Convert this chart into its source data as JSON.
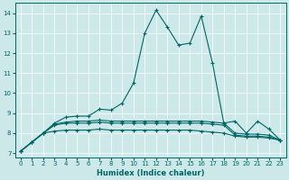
{
  "xlabel": "Humidex (Indice chaleur)",
  "xlim": [
    -0.5,
    23.5
  ],
  "ylim": [
    6.8,
    14.5
  ],
  "xticks": [
    0,
    1,
    2,
    3,
    4,
    5,
    6,
    7,
    8,
    9,
    10,
    11,
    12,
    13,
    14,
    15,
    16,
    17,
    18,
    19,
    20,
    21,
    22,
    23
  ],
  "yticks": [
    7,
    8,
    9,
    10,
    11,
    12,
    13,
    14
  ],
  "bg_color": "#cde8e8",
  "line_color": "#006666",
  "grid_color": "#b0d0d0",
  "line1": [
    7.1,
    7.55,
    8.0,
    8.5,
    8.8,
    8.85,
    8.85,
    9.2,
    9.15,
    9.5,
    10.5,
    13.0,
    14.15,
    13.3,
    12.4,
    12.5,
    13.85,
    11.5,
    8.5,
    8.6,
    8.0,
    8.6,
    8.2,
    7.65
  ],
  "line2": [
    7.1,
    7.55,
    8.0,
    8.45,
    8.55,
    8.6,
    8.6,
    8.65,
    8.6,
    8.6,
    8.6,
    8.6,
    8.6,
    8.6,
    8.6,
    8.6,
    8.6,
    8.55,
    8.5,
    8.0,
    7.95,
    7.95,
    7.9,
    7.65
  ],
  "line3": [
    7.1,
    7.55,
    8.0,
    8.1,
    8.15,
    8.15,
    8.15,
    8.2,
    8.15,
    8.15,
    8.15,
    8.15,
    8.15,
    8.15,
    8.15,
    8.15,
    8.1,
    8.05,
    8.0,
    7.85,
    7.8,
    7.8,
    7.75,
    7.65
  ],
  "line4": [
    7.1,
    7.55,
    8.0,
    8.4,
    8.5,
    8.5,
    8.5,
    8.55,
    8.5,
    8.5,
    8.5,
    8.5,
    8.5,
    8.5,
    8.5,
    8.5,
    8.5,
    8.45,
    8.4,
    7.9,
    7.85,
    7.85,
    7.8,
    7.65
  ]
}
